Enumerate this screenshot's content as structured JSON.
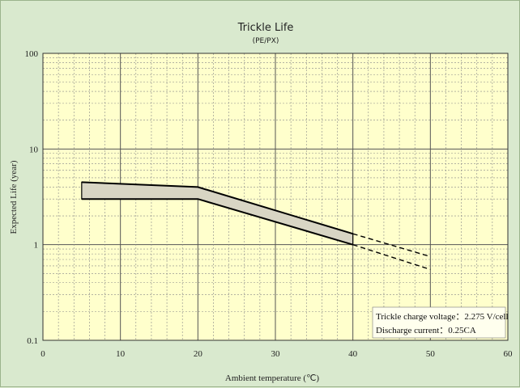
{
  "chart_data": {
    "type": "area",
    "title": "Trickle Life",
    "subtitle": "(PE/PX)",
    "xlabel": "Ambient temperature (℃)",
    "ylabel": "Expected Life (year)",
    "x_ticks": [
      "0",
      "10",
      "20",
      "30",
      "40",
      "50",
      "60"
    ],
    "y_ticks": [
      "0.1",
      "1",
      "10",
      "100"
    ],
    "xlim": [
      0,
      60
    ],
    "ylim": [
      0.1,
      100
    ],
    "y_scale": "log",
    "grid": true,
    "band": {
      "upper": [
        [
          5,
          4.5
        ],
        [
          20,
          4.0
        ],
        [
          40,
          1.3
        ]
      ],
      "lower": [
        [
          5,
          3.0
        ],
        [
          20,
          3.0
        ],
        [
          40,
          1.0
        ]
      ]
    },
    "extrapolated": {
      "upper": [
        [
          40,
          1.3
        ],
        [
          50,
          0.75
        ]
      ],
      "lower": [
        [
          40,
          1.0
        ],
        [
          50,
          0.55
        ]
      ]
    },
    "annotations": [
      "Trickle charge voltage：2.275 V/cell",
      "Discharge current：0.25CA"
    ],
    "colors": {
      "plot_bg": "#ffffcc",
      "band_fill": "#d8d5c4",
      "line": "#000000",
      "grid_major": "#555555",
      "grid_minor": "#888888"
    }
  }
}
